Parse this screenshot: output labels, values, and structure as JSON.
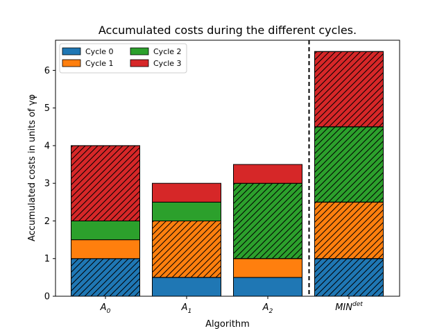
{
  "chart_data": {
    "type": "bar",
    "stacked": true,
    "title": "Accumulated costs during the different cycles.",
    "xlabel": "Algorithm",
    "ylabel": "Accumulated costs in units of γφ",
    "categories": [
      {
        "base": "A",
        "sub": "0",
        "sup": ""
      },
      {
        "base": "A",
        "sub": "1",
        "sup": ""
      },
      {
        "base": "A",
        "sub": "2",
        "sup": ""
      },
      {
        "base": "MIN",
        "sub": "",
        "sup": "det"
      }
    ],
    "ylim": [
      0,
      6.8
    ],
    "yticks": [
      "0",
      "1",
      "2",
      "3",
      "4",
      "5",
      "6"
    ],
    "legend_position": "top-left",
    "separator": {
      "after_category": 2,
      "style": "dashed"
    },
    "series": [
      {
        "name": "Cycle 0",
        "color": "#1f77b4",
        "values": [
          1.0,
          0.5,
          0.5,
          1.0
        ],
        "hatched": [
          true,
          false,
          false,
          true
        ]
      },
      {
        "name": "Cycle 1",
        "color": "#ff7f0e",
        "values": [
          0.5,
          1.5,
          0.5,
          1.5
        ],
        "hatched": [
          false,
          true,
          false,
          true
        ]
      },
      {
        "name": "Cycle 2",
        "color": "#2ca02c",
        "values": [
          0.5,
          0.5,
          2.0,
          2.0
        ],
        "hatched": [
          false,
          false,
          true,
          true
        ]
      },
      {
        "name": "Cycle 3",
        "color": "#d62728",
        "values": [
          2.0,
          0.5,
          0.5,
          2.0
        ],
        "hatched": [
          true,
          false,
          false,
          true
        ]
      }
    ]
  }
}
